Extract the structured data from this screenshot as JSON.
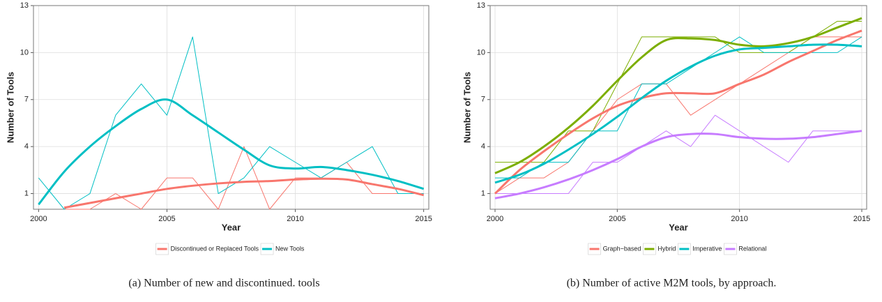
{
  "chart_data": [
    {
      "type": "line",
      "xlabel": "Year",
      "ylabel": "Number of Tools",
      "caption": "(a) Number of new and discontinued. tools",
      "xlim": [
        1999.8,
        2015.2
      ],
      "xticks": [
        2000,
        2005,
        2010,
        2015
      ],
      "ylim": [
        0,
        13
      ],
      "yticks": [
        1,
        4,
        7,
        10,
        13
      ],
      "grid": true,
      "legend": "bottom",
      "x": [
        2000,
        2001,
        2002,
        2003,
        2004,
        2005,
        2006,
        2007,
        2008,
        2009,
        2010,
        2011,
        2012,
        2013,
        2014,
        2015
      ],
      "series": [
        {
          "name": "Discontinued  or Replaced Tools",
          "color": "#f8766d",
          "values": [
            null,
            0,
            0,
            1,
            0,
            2,
            2,
            0,
            4,
            0,
            2,
            2,
            3,
            1,
            1,
            1
          ],
          "smooth": [
            null,
            0.1,
            0.4,
            0.7,
            1.0,
            1.3,
            1.5,
            1.65,
            1.75,
            1.8,
            1.9,
            1.95,
            1.9,
            1.6,
            1.3,
            0.9
          ]
        },
        {
          "name": "New Tools",
          "color": "#00bfc4",
          "values": [
            2,
            0,
            1,
            6,
            8,
            6,
            11,
            1,
            2,
            4,
            3,
            2,
            3,
            4,
            1,
            1
          ],
          "smooth": [
            0.3,
            2.4,
            4.0,
            5.3,
            6.4,
            7.0,
            6.0,
            4.9,
            3.8,
            2.8,
            2.6,
            2.7,
            2.5,
            2.2,
            1.8,
            1.3
          ]
        }
      ]
    },
    {
      "type": "line",
      "xlabel": "Year",
      "ylabel": "Number of Tools",
      "caption": "(b) Number of active M2M tools, by approach.",
      "xlim": [
        1999.8,
        2015.2
      ],
      "xticks": [
        2000,
        2005,
        2010,
        2015
      ],
      "ylim": [
        0,
        13
      ],
      "yticks": [
        1,
        4,
        7,
        10,
        13
      ],
      "grid": true,
      "legend": "bottom",
      "x": [
        2000,
        2001,
        2002,
        2003,
        2004,
        2005,
        2006,
        2007,
        2008,
        2009,
        2010,
        2011,
        2012,
        2013,
        2014,
        2015
      ],
      "series": [
        {
          "name": "Graph−based",
          "color": "#f8766d",
          "values": [
            1,
            2,
            2,
            3,
            5,
            7,
            8,
            8,
            6,
            7,
            8,
            9,
            10,
            11,
            11,
            11
          ],
          "smooth": [
            1.0,
            2.5,
            3.7,
            4.8,
            5.8,
            6.6,
            7.1,
            7.4,
            7.4,
            7.4,
            8.0,
            8.6,
            9.4,
            10.1,
            10.8,
            11.4
          ]
        },
        {
          "name": "Hybrid",
          "color": "#7cae00",
          "values": [
            3,
            3,
            3,
            5,
            5,
            8,
            11,
            11,
            11,
            11,
            10,
            10,
            10,
            11,
            12,
            12
          ],
          "smooth": [
            2.3,
            3.0,
            4.0,
            5.2,
            6.6,
            8.2,
            9.7,
            10.8,
            10.9,
            10.8,
            10.5,
            10.4,
            10.6,
            11.0,
            11.6,
            12.2
          ]
        },
        {
          "name": "Imperative",
          "color": "#00bfc4",
          "values": [
            2,
            2,
            3,
            3,
            5,
            5,
            8,
            8,
            9,
            10,
            11,
            10,
            10,
            10,
            10,
            11
          ],
          "smooth": [
            1.7,
            2.2,
            2.9,
            3.8,
            4.8,
            5.9,
            7.1,
            8.2,
            9.1,
            9.8,
            10.2,
            10.3,
            10.4,
            10.5,
            10.5,
            10.4
          ]
        },
        {
          "name": "Relational",
          "color": "#c77cff",
          "values": [
            1,
            1,
            1,
            1,
            3,
            3,
            4,
            5,
            4,
            6,
            5,
            4,
            3,
            5,
            5,
            5
          ],
          "smooth": [
            0.7,
            1.0,
            1.4,
            1.9,
            2.5,
            3.2,
            4.0,
            4.6,
            4.8,
            4.8,
            4.6,
            4.5,
            4.5,
            4.6,
            4.8,
            5.0
          ]
        }
      ]
    }
  ]
}
